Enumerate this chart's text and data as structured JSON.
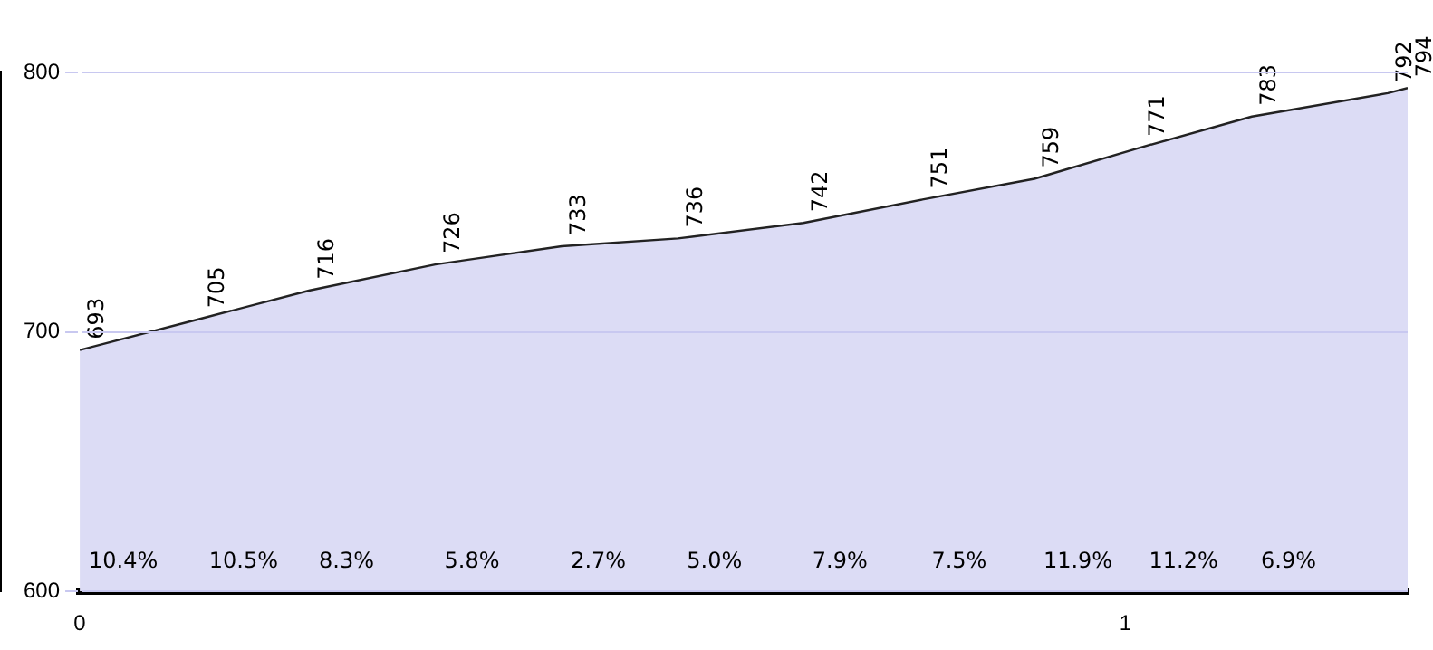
{
  "chart_data": {
    "type": "area",
    "x": [
      0,
      0.115,
      0.22,
      0.34,
      0.461,
      0.572,
      0.692,
      0.806,
      0.913,
      1.014,
      1.121,
      1.251,
      1.27
    ],
    "series": [
      {
        "color": "#dcdcf5",
        "values": [
          693,
          705,
          716,
          726,
          733,
          736,
          742,
          751,
          759,
          771,
          783,
          792,
          794
        ]
      }
    ],
    "data_labels": true,
    "xlim": [
      0,
      1.27
    ],
    "xticks": [
      0,
      1
    ],
    "ylim": [
      600,
      800
    ],
    "yticks": [
      600,
      700,
      800
    ],
    "grid": "y",
    "legend": false,
    "annotations": [
      "10.4%",
      "10.5%",
      "8.3%",
      "5.8%",
      "2.7%",
      "5.0%",
      "7.9%",
      "7.5%",
      "11.9%",
      "11.2%",
      "6.9%"
    ]
  }
}
